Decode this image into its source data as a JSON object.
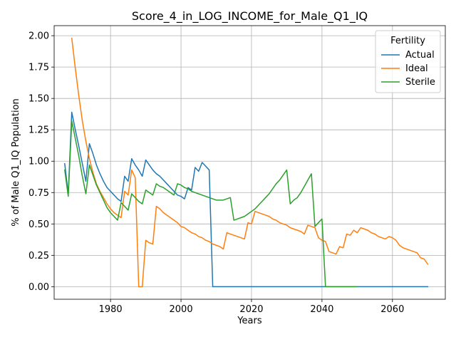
{
  "chart_data": {
    "type": "line",
    "title": "Score_4_in_LOG_INCOME_for_Male_Q1_IQ",
    "xlabel": "Years",
    "ylabel": "% of Male Q1_IQ Population",
    "xlim": [
      1964,
      2075
    ],
    "ylim": [
      -0.1,
      2.08
    ],
    "xticks": [
      1980,
      2000,
      2020,
      2040,
      2060
    ],
    "yticks": [
      0.0,
      0.25,
      0.5,
      0.75,
      1.0,
      1.25,
      1.5,
      1.75,
      2.0
    ],
    "ytick_labels": [
      "0.00",
      "0.25",
      "0.50",
      "0.75",
      "1.00",
      "1.25",
      "1.50",
      "1.75",
      "2.00"
    ],
    "grid": true,
    "legend": {
      "title": "Fertility",
      "position": "top-right"
    },
    "series": [
      {
        "name": "Actual",
        "color": "#1f77b4",
        "points": [
          [
            1967,
            0.98
          ],
          [
            1968,
            0.74
          ],
          [
            1969,
            1.39
          ],
          [
            1970,
            1.25
          ],
          [
            1971,
            1.12
          ],
          [
            1972,
            0.98
          ],
          [
            1973,
            0.84
          ],
          [
            1974,
            1.14
          ],
          [
            1975,
            1.06
          ],
          [
            1976,
            0.97
          ],
          [
            1977,
            0.9
          ],
          [
            1978,
            0.84
          ],
          [
            1979,
            0.79
          ],
          [
            1980,
            0.76
          ],
          [
            1981,
            0.73
          ],
          [
            1982,
            0.7
          ],
          [
            1983,
            0.68
          ],
          [
            1984,
            0.88
          ],
          [
            1985,
            0.84
          ],
          [
            1986,
            1.02
          ],
          [
            1987,
            0.97
          ],
          [
            1988,
            0.93
          ],
          [
            1989,
            0.88
          ],
          [
            1990,
            1.01
          ],
          [
            1991,
            0.97
          ],
          [
            1992,
            0.93
          ],
          [
            1993,
            0.9
          ],
          [
            1994,
            0.88
          ],
          [
            1995,
            0.85
          ],
          [
            1996,
            0.82
          ],
          [
            1997,
            0.79
          ],
          [
            1998,
            0.76
          ],
          [
            1999,
            0.73
          ],
          [
            2000,
            0.72
          ],
          [
            2001,
            0.7
          ],
          [
            2002,
            0.79
          ],
          [
            2003,
            0.77
          ],
          [
            2004,
            0.95
          ],
          [
            2005,
            0.92
          ],
          [
            2006,
            0.99
          ],
          [
            2007,
            0.96
          ],
          [
            2008,
            0.93
          ],
          [
            2009,
            0.0
          ],
          [
            2020,
            0.0
          ],
          [
            2040,
            0.0
          ],
          [
            2060,
            0.0
          ],
          [
            2070,
            0.0
          ]
        ]
      },
      {
        "name": "Ideal",
        "color": "#ff7f0e",
        "points": [
          [
            1969,
            1.98
          ],
          [
            1970,
            1.74
          ],
          [
            1971,
            1.52
          ],
          [
            1972,
            1.32
          ],
          [
            1973,
            1.16
          ],
          [
            1974,
            1.02
          ],
          [
            1975,
            0.91
          ],
          [
            1976,
            0.82
          ],
          [
            1977,
            0.76
          ],
          [
            1978,
            0.71
          ],
          [
            1979,
            0.66
          ],
          [
            1980,
            0.62
          ],
          [
            1981,
            0.59
          ],
          [
            1982,
            0.57
          ],
          [
            1983,
            0.55
          ],
          [
            1984,
            0.76
          ],
          [
            1985,
            0.73
          ],
          [
            1986,
            0.93
          ],
          [
            1987,
            0.87
          ],
          [
            1988,
            0.0
          ],
          [
            1989,
            0.0
          ],
          [
            1990,
            0.37
          ],
          [
            1991,
            0.35
          ],
          [
            1992,
            0.34
          ],
          [
            1993,
            0.64
          ],
          [
            1994,
            0.62
          ],
          [
            1995,
            0.59
          ],
          [
            1996,
            0.57
          ],
          [
            1997,
            0.55
          ],
          [
            1998,
            0.53
          ],
          [
            1999,
            0.51
          ],
          [
            2000,
            0.48
          ],
          [
            2001,
            0.47
          ],
          [
            2002,
            0.45
          ],
          [
            2003,
            0.43
          ],
          [
            2004,
            0.42
          ],
          [
            2005,
            0.4
          ],
          [
            2006,
            0.39
          ],
          [
            2007,
            0.37
          ],
          [
            2008,
            0.36
          ],
          [
            2009,
            0.34
          ],
          [
            2010,
            0.33
          ],
          [
            2011,
            0.32
          ],
          [
            2012,
            0.3
          ],
          [
            2013,
            0.43
          ],
          [
            2014,
            0.42
          ],
          [
            2015,
            0.41
          ],
          [
            2016,
            0.4
          ],
          [
            2017,
            0.39
          ],
          [
            2018,
            0.38
          ],
          [
            2019,
            0.51
          ],
          [
            2020,
            0.5
          ],
          [
            2021,
            0.6
          ],
          [
            2022,
            0.59
          ],
          [
            2023,
            0.58
          ],
          [
            2024,
            0.57
          ],
          [
            2025,
            0.56
          ],
          [
            2026,
            0.54
          ],
          [
            2027,
            0.53
          ],
          [
            2028,
            0.51
          ],
          [
            2029,
            0.5
          ],
          [
            2030,
            0.49
          ],
          [
            2031,
            0.47
          ],
          [
            2032,
            0.46
          ],
          [
            2033,
            0.45
          ],
          [
            2034,
            0.44
          ],
          [
            2035,
            0.42
          ],
          [
            2036,
            0.49
          ],
          [
            2037,
            0.48
          ],
          [
            2038,
            0.47
          ],
          [
            2039,
            0.39
          ],
          [
            2040,
            0.37
          ],
          [
            2041,
            0.36
          ],
          [
            2042,
            0.28
          ],
          [
            2043,
            0.27
          ],
          [
            2044,
            0.26
          ],
          [
            2045,
            0.32
          ],
          [
            2046,
            0.31
          ],
          [
            2047,
            0.42
          ],
          [
            2048,
            0.41
          ],
          [
            2049,
            0.45
          ],
          [
            2050,
            0.43
          ],
          [
            2051,
            0.47
          ],
          [
            2052,
            0.46
          ],
          [
            2053,
            0.45
          ],
          [
            2054,
            0.43
          ],
          [
            2055,
            0.42
          ],
          [
            2056,
            0.4
          ],
          [
            2057,
            0.39
          ],
          [
            2058,
            0.38
          ],
          [
            2059,
            0.4
          ],
          [
            2060,
            0.39
          ],
          [
            2061,
            0.37
          ],
          [
            2062,
            0.33
          ],
          [
            2063,
            0.31
          ],
          [
            2064,
            0.3
          ],
          [
            2065,
            0.29
          ],
          [
            2066,
            0.28
          ],
          [
            2067,
            0.27
          ],
          [
            2068,
            0.23
          ],
          [
            2069,
            0.22
          ],
          [
            2070,
            0.18
          ]
        ]
      },
      {
        "name": "Sterile",
        "color": "#2ca02c",
        "points": [
          [
            1967,
            0.93
          ],
          [
            1968,
            0.72
          ],
          [
            1969,
            1.32
          ],
          [
            1970,
            1.18
          ],
          [
            1971,
            1.04
          ],
          [
            1972,
            0.88
          ],
          [
            1973,
            0.74
          ],
          [
            1974,
            0.97
          ],
          [
            1975,
            0.89
          ],
          [
            1976,
            0.81
          ],
          [
            1977,
            0.75
          ],
          [
            1978,
            0.69
          ],
          [
            1979,
            0.63
          ],
          [
            1980,
            0.59
          ],
          [
            1981,
            0.56
          ],
          [
            1982,
            0.53
          ],
          [
            1983,
            0.67
          ],
          [
            1984,
            0.64
          ],
          [
            1985,
            0.61
          ],
          [
            1986,
            0.74
          ],
          [
            1987,
            0.71
          ],
          [
            1988,
            0.68
          ],
          [
            1989,
            0.66
          ],
          [
            1990,
            0.77
          ],
          [
            1991,
            0.75
          ],
          [
            1992,
            0.73
          ],
          [
            1993,
            0.82
          ],
          [
            1994,
            0.8
          ],
          [
            1995,
            0.79
          ],
          [
            1996,
            0.77
          ],
          [
            1997,
            0.75
          ],
          [
            1998,
            0.73
          ],
          [
            1999,
            0.82
          ],
          [
            2000,
            0.81
          ],
          [
            2001,
            0.79
          ],
          [
            2002,
            0.78
          ],
          [
            2003,
            0.76
          ],
          [
            2004,
            0.75
          ],
          [
            2005,
            0.74
          ],
          [
            2006,
            0.73
          ],
          [
            2007,
            0.72
          ],
          [
            2008,
            0.71
          ],
          [
            2009,
            0.7
          ],
          [
            2010,
            0.69
          ],
          [
            2011,
            0.69
          ],
          [
            2012,
            0.69
          ],
          [
            2013,
            0.7
          ],
          [
            2014,
            0.71
          ],
          [
            2015,
            0.53
          ],
          [
            2016,
            0.54
          ],
          [
            2017,
            0.55
          ],
          [
            2018,
            0.56
          ],
          [
            2019,
            0.58
          ],
          [
            2020,
            0.6
          ],
          [
            2021,
            0.62
          ],
          [
            2022,
            0.65
          ],
          [
            2023,
            0.68
          ],
          [
            2024,
            0.71
          ],
          [
            2025,
            0.74
          ],
          [
            2026,
            0.78
          ],
          [
            2027,
            0.82
          ],
          [
            2028,
            0.85
          ],
          [
            2029,
            0.89
          ],
          [
            2030,
            0.93
          ],
          [
            2031,
            0.66
          ],
          [
            2032,
            0.69
          ],
          [
            2033,
            0.71
          ],
          [
            2034,
            0.75
          ],
          [
            2035,
            0.8
          ],
          [
            2036,
            0.85
          ],
          [
            2037,
            0.9
          ],
          [
            2038,
            0.48
          ],
          [
            2039,
            0.51
          ],
          [
            2040,
            0.54
          ],
          [
            2041,
            0.0
          ],
          [
            2050,
            0.0
          ]
        ]
      }
    ]
  }
}
